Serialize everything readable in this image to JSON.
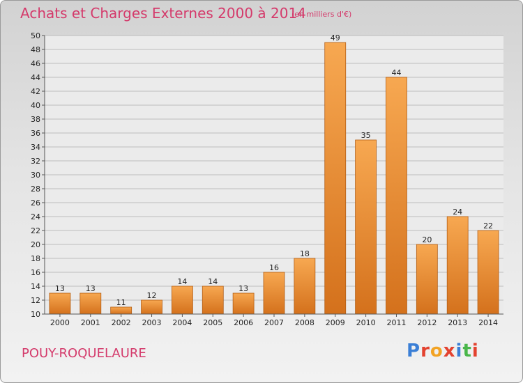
{
  "header": {
    "title": "Achats et Charges Externes 2000 à 2014",
    "subtitle": "(en milliers d'€)"
  },
  "footer": {
    "place": "POUY-ROQUELAURE",
    "logo": {
      "letters": [
        "P",
        "r",
        "o",
        "x",
        "i",
        "t",
        "i"
      ],
      "colors": [
        "#3b7fd6",
        "#e3422f",
        "#f2a324",
        "#e3422f",
        "#3b7fd6",
        "#49b64a",
        "#e3422f"
      ]
    }
  },
  "colors": {
    "title": "#d43a6b",
    "bar_light": "#f7a851",
    "bar_dark": "#d4711c",
    "bar_edge": "#b35e15",
    "grid": "#bdbdbd",
    "plot_bg": "#ebebeb"
  },
  "chart_data": {
    "type": "bar",
    "title": "Achats et Charges Externes 2000 à 2014",
    "subtitle": "(en milliers d'€)",
    "categories": [
      "2000",
      "2001",
      "2002",
      "2003",
      "2004",
      "2005",
      "2006",
      "2007",
      "2008",
      "2009",
      "2010",
      "2011",
      "2012",
      "2013",
      "2014"
    ],
    "values": [
      13,
      13,
      11,
      12,
      14,
      14,
      13,
      16,
      18,
      49,
      35,
      44,
      20,
      24,
      22
    ],
    "ylim": [
      10,
      50
    ],
    "yticks": [
      10,
      12,
      14,
      16,
      18,
      20,
      22,
      24,
      26,
      28,
      30,
      32,
      34,
      36,
      38,
      40,
      42,
      44,
      46,
      48,
      50
    ],
    "grid": true,
    "data_labels": true
  }
}
